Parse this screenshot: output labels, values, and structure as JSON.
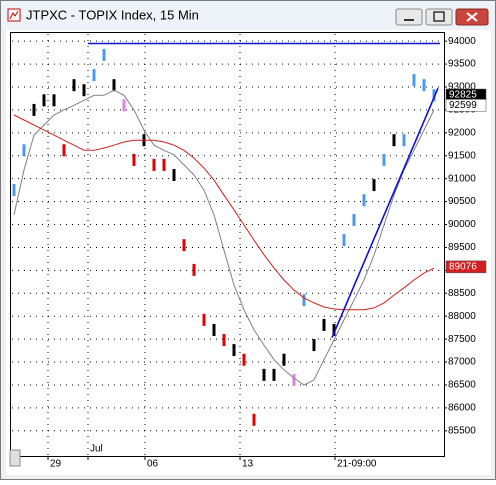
{
  "chart_data": {
    "type": "line",
    "title": "JTPXC - TOPIX Index, 15 Min",
    "x": [
      0,
      1,
      2,
      3,
      4,
      5,
      6,
      7,
      8,
      9,
      10,
      11,
      12,
      13,
      14,
      15,
      16,
      17,
      18,
      19,
      20,
      21,
      22,
      23,
      24,
      25,
      26,
      27,
      28,
      29,
      30,
      31,
      32,
      33,
      34,
      35,
      36,
      37,
      38,
      39,
      40,
      41,
      42
    ],
    "xlim": [
      -0.4,
      43
    ],
    "xticks": [
      {
        "value": 3.4,
        "label": "29"
      },
      {
        "value": 7.4,
        "label": "Jul"
      },
      {
        "value": 13.1,
        "label": "06"
      },
      {
        "value": 22.6,
        "label": "13"
      },
      {
        "value": 32.1,
        "label": "21-09:00"
      }
    ],
    "ylim": [
      84950,
      94200
    ],
    "yticks": [
      85500,
      86000,
      86500,
      87000,
      87500,
      88000,
      88500,
      89000,
      89500,
      90000,
      90500,
      91000,
      91500,
      92000,
      92500,
      93000,
      93500,
      94000
    ],
    "grid": true,
    "series": [
      {
        "marker": "bar",
        "values": [
          90750,
          91620,
          92500,
          92710,
          92710,
          91620,
          93040,
          92930,
          93260,
          93700,
          93040,
          92600,
          91410,
          91840,
          91300,
          91300,
          91080,
          89550,
          89010,
          87920,
          87700,
          87480,
          87260,
          87050,
          85740,
          86720,
          86720,
          87050,
          86610,
          88350,
          87370,
          87810,
          87700,
          89660,
          90100,
          90530,
          90860,
          91410,
          91840,
          91840,
          93150,
          93040,
          92820
        ],
        "colors": [
          "#4a9ae8",
          "#4a9ae8",
          "#000000",
          "#000000",
          "#000000",
          "#e00000",
          "#000000",
          "#000000",
          "#4a9ae8",
          "#4a9ae8",
          "#000000",
          "#e080e0",
          "#e00000",
          "#000000",
          "#e00000",
          "#e00000",
          "#000000",
          "#e00000",
          "#e00000",
          "#e00000",
          "#000000",
          "#e00000",
          "#000000",
          "#e00000",
          "#e00000",
          "#000000",
          "#000000",
          "#000000",
          "#e080e0",
          "#4a9ae8",
          "#000000",
          "#000000",
          "#000000",
          "#4a9ae8",
          "#4a9ae8",
          "#4a9ae8",
          "#000000",
          "#4a9ae8",
          "#000000",
          "#4a9ae8",
          "#4a9ae8",
          "#4a9ae8",
          "#4a9ae8"
        ]
      },
      {
        "color": "#808080",
        "values": [
          90210,
          91190,
          91950,
          92170,
          92390,
          92500,
          92600,
          92710,
          92820,
          92820,
          92930,
          92820,
          92500,
          92060,
          91730,
          91620,
          91520,
          91300,
          91080,
          90750,
          90210,
          89440,
          88680,
          88140,
          87700,
          87370,
          87050,
          86830,
          86650,
          86500,
          86610,
          87050,
          87480,
          87920,
          88350,
          88790,
          89330,
          89990,
          90640,
          91190,
          91620,
          92060,
          92500
        ]
      },
      {
        "color": "#d02020",
        "values": [
          92390,
          92280,
          92170,
          92060,
          91950,
          91840,
          91730,
          91620,
          91620,
          91670,
          91730,
          91800,
          91840,
          91840,
          91840,
          91800,
          91730,
          91620,
          91450,
          91230,
          90970,
          90640,
          90320,
          89990,
          89660,
          89340,
          89050,
          88790,
          88570,
          88400,
          88290,
          88200,
          88160,
          88140,
          88140,
          88140,
          88180,
          88290,
          88460,
          88620,
          88790,
          88940,
          89050
        ]
      },
      {
        "color": "#1010d0",
        "x": [
          7.4,
          42.6
        ],
        "values": [
          93950,
          93950
        ]
      },
      {
        "color": "#1010d0",
        "x": [
          31.8,
          42.4
        ],
        "values": [
          87530,
          92975
        ]
      }
    ],
    "price_labels": [
      {
        "value": 92825,
        "color": "#000000",
        "text_color": "#ffffff"
      },
      {
        "value": 92599,
        "color": "#ffffff",
        "text_color": "#000000"
      },
      {
        "value": 89076,
        "color": "#d02020",
        "text_color": "#ffffff"
      }
    ]
  }
}
